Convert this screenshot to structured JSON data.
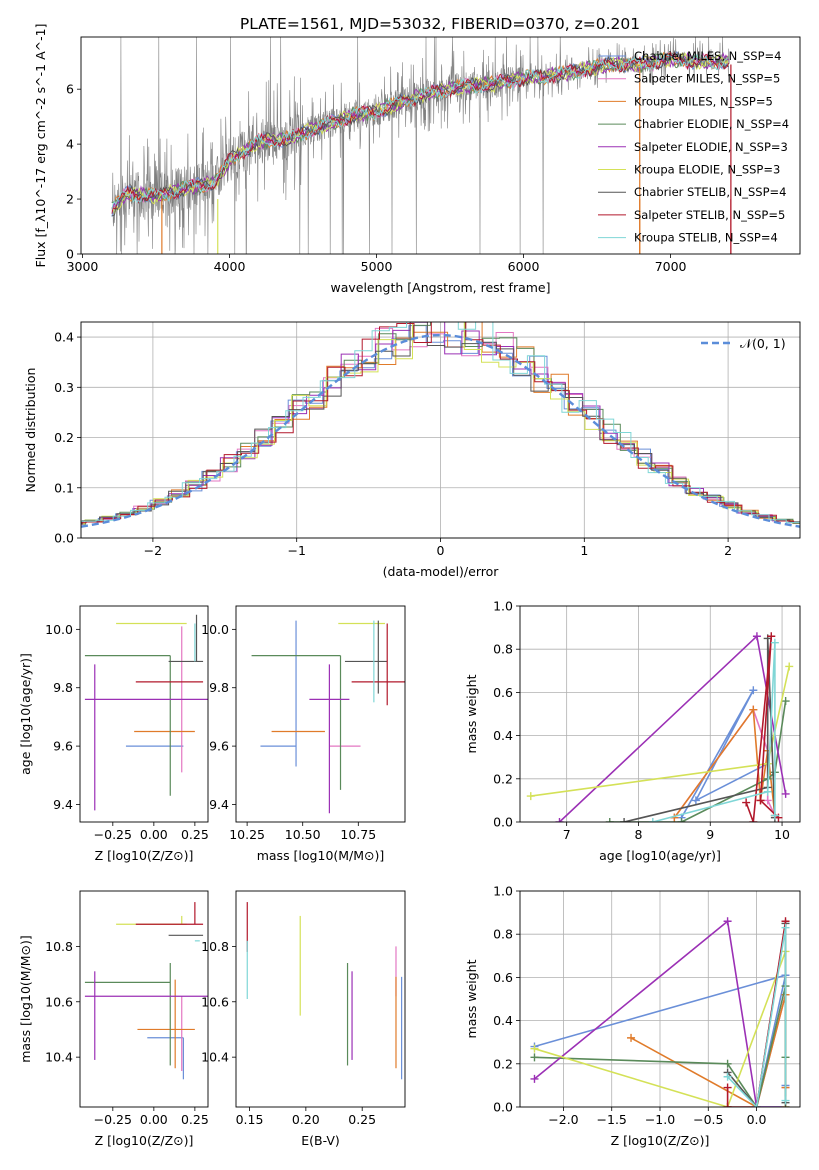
{
  "figure": {
    "title": "PLATE=1561, MJD=53032, FIBERID=0370, z=0.201"
  },
  "chart_data": [
    {
      "id": "spectrum",
      "type": "line",
      "xlabel": "wavelength [Angstrom, rest frame]",
      "ylabel": "Flux [f_λ10^-17 erg cm^-2 s^-1 A^-1]",
      "xlim": [
        2990,
        7880
      ],
      "ylim": [
        0,
        7.9
      ],
      "xticks": [
        3000,
        4000,
        5000,
        6000,
        7000
      ],
      "yticks": [
        0,
        2,
        4,
        6
      ],
      "legend_position": "top-right",
      "legend": [
        {
          "label": "Chabrier MILES, N_SSP=4",
          "color": "#6a8fd8"
        },
        {
          "label": "Salpeter MILES, N_SSP=5",
          "color": "#e377c2"
        },
        {
          "label": "Kroupa MILES, N_SSP=5",
          "color": "#e07b2a"
        },
        {
          "label": "Chabrier ELODIE, N_SSP=4",
          "color": "#5a8a5a"
        },
        {
          "label": "Salpeter ELODIE, N_SSP=3",
          "color": "#9b30b5"
        },
        {
          "label": "Kroupa ELODIE, N_SSP=3",
          "color": "#d4e157"
        },
        {
          "label": "Chabrier STELIB, N_SSP=4",
          "color": "#555555"
        },
        {
          "label": "Salpeter STELIB, N_SSP=5",
          "color": "#b2182b"
        },
        {
          "label": "Kroupa STELIB, N_SSP=4",
          "color": "#7fd6d6"
        }
      ],
      "continuum": {
        "x": [
          3200,
          3300,
          3500,
          3700,
          3900,
          4000,
          4200,
          4400,
          4600,
          4800,
          5000,
          5200,
          5400,
          5600,
          5800,
          6000,
          6200,
          6400,
          6600,
          6800,
          7000,
          7200,
          7400
        ],
        "y": [
          1.6,
          2.2,
          2.1,
          2.4,
          2.6,
          3.4,
          4.1,
          4.2,
          4.6,
          5.0,
          5.2,
          5.6,
          5.9,
          6.1,
          6.2,
          6.4,
          6.5,
          6.7,
          6.9,
          6.9,
          7.1,
          7.0,
          7.0
        ]
      }
    },
    {
      "id": "residuals",
      "type": "histogram",
      "xlabel": "(data-model)/error",
      "ylabel": "Normed distribution",
      "xlim": [
        -2.5,
        2.5
      ],
      "ylim": [
        0,
        0.43
      ],
      "xticks": [
        -2,
        -1,
        0,
        1,
        2
      ],
      "yticks": [
        0.0,
        0.1,
        0.2,
        0.3,
        0.4
      ],
      "grid": true,
      "legend": [
        {
          "label": "𝒩(0, 1)",
          "color": "#5b8dd9",
          "style": "dashed"
        }
      ],
      "legend_position": "top-right",
      "bin_width": 0.12
    },
    {
      "id": "age_vs_Z",
      "type": "errorbar",
      "xlabel": "Z [log10(Z/Z⊙)]",
      "ylabel": "age [log10(age/yr)]",
      "xlim": [
        -0.45,
        0.33
      ],
      "ylim": [
        9.34,
        10.08
      ],
      "xticks": [
        -0.25,
        0.0,
        0.25
      ],
      "yticks": [
        9.4,
        9.6,
        9.8,
        10.0
      ],
      "points": [
        {
          "x": 0.18,
          "y": 9.6,
          "xerr": [
            0.35,
            0.0
          ],
          "yerr": [
            0.0,
            0.0
          ],
          "color": "#6a8fd8"
        },
        {
          "x": 0.17,
          "y": 9.6,
          "xerr": [
            0.0,
            0.0
          ],
          "yerr": [
            0.09,
            0.41
          ],
          "color": "#e377c2"
        },
        {
          "x": 0.13,
          "y": 9.65,
          "xerr": [
            0.25,
            0.12
          ],
          "yerr": [
            0.0,
            0.0
          ],
          "color": "#e07b2a"
        },
        {
          "x": 0.1,
          "y": 9.91,
          "xerr": [
            0.52,
            0.0
          ],
          "yerr": [
            0.48,
            0.0
          ],
          "color": "#5a8a5a"
        },
        {
          "x": -0.36,
          "y": 9.76,
          "xerr": [
            0.06,
            0.7
          ],
          "yerr": [
            0.38,
            0.12
          ],
          "color": "#9b30b5"
        },
        {
          "x": 0.17,
          "y": 10.02,
          "xerr": [
            0.4,
            0.03
          ],
          "yerr": [
            0.0,
            0.0
          ],
          "color": "#d4e157"
        },
        {
          "x": 0.26,
          "y": 9.89,
          "xerr": [
            0.17,
            0.04
          ],
          "yerr": [
            0.0,
            0.16
          ],
          "color": "#555555"
        },
        {
          "x": 0.25,
          "y": 9.82,
          "xerr": [
            0.36,
            0.05
          ],
          "yerr": [
            0.0,
            0.0
          ],
          "color": "#b2182b"
        },
        {
          "x": 0.25,
          "y": 9.89,
          "xerr": [
            0.0,
            0.0
          ],
          "yerr": [
            0.0,
            0.13
          ],
          "color": "#7fd6d6"
        }
      ]
    },
    {
      "id": "age_vs_mass",
      "type": "errorbar",
      "xlabel": "mass [log10(M/M⊙)]",
      "ylabel": "",
      "xlim": [
        10.2,
        10.96
      ],
      "ylim": [
        9.34,
        10.08
      ],
      "xticks": [
        10.25,
        10.5,
        10.75
      ],
      "yticks": [
        9.4,
        9.6,
        9.8,
        10.0
      ],
      "points": [
        {
          "x": 10.47,
          "y": 9.6,
          "xerr": [
            0.16,
            0.0
          ],
          "yerr": [
            0.07,
            0.43
          ],
          "color": "#6a8fd8"
        },
        {
          "x": 10.62,
          "y": 9.6,
          "xerr": [
            0.0,
            0.14
          ],
          "yerr": [
            0.0,
            0.0
          ],
          "color": "#e377c2"
        },
        {
          "x": 10.5,
          "y": 9.65,
          "xerr": [
            0.14,
            0.1
          ],
          "yerr": [
            0.0,
            0.0
          ],
          "color": "#e07b2a"
        },
        {
          "x": 10.67,
          "y": 9.91,
          "xerr": [
            0.4,
            0.0
          ],
          "yerr": [
            0.46,
            0.0
          ],
          "color": "#5a8a5a"
        },
        {
          "x": 10.62,
          "y": 9.76,
          "xerr": [
            0.09,
            0.09
          ],
          "yerr": [
            0.39,
            0.12
          ],
          "color": "#9b30b5"
        },
        {
          "x": 10.87,
          "y": 10.02,
          "xerr": [
            0.21,
            0.0
          ],
          "yerr": [
            0.0,
            0.0
          ],
          "color": "#d4e157"
        },
        {
          "x": 10.84,
          "y": 9.89,
          "xerr": [
            0.15,
            0.04
          ],
          "yerr": [
            0.11,
            0.14
          ],
          "color": "#555555"
        },
        {
          "x": 10.88,
          "y": 9.82,
          "xerr": [
            0.16,
            0.08
          ],
          "yerr": [
            0.08,
            0.2
          ],
          "color": "#b2182b"
        },
        {
          "x": 10.82,
          "y": 9.89,
          "xerr": [
            0.0,
            0.0
          ],
          "yerr": [
            0.14,
            0.14
          ],
          "color": "#7fd6d6"
        }
      ]
    },
    {
      "id": "weight_vs_age",
      "type": "line",
      "xlabel": "age [log10(age/yr)]",
      "ylabel": "mass weight",
      "xlim": [
        6.35,
        10.25
      ],
      "ylim": [
        0.0,
        1.0
      ],
      "xticks": [
        7,
        8,
        9,
        10
      ],
      "yticks": [
        0.0,
        0.2,
        0.4,
        0.6,
        0.8,
        1.0
      ],
      "grid": true,
      "series": [
        {
          "color": "#6a8fd8",
          "x": [
            8.6,
            9.6,
            8.8,
            9.8
          ],
          "y": [
            0.02,
            0.61,
            0.1,
            0.27
          ]
        },
        {
          "color": "#e377c2",
          "x": [
            8.5,
            9.6,
            9.8,
            9.8,
            9.9
          ],
          "y": [
            0.02,
            0.52,
            0.33,
            0.1,
            0.03
          ]
        },
        {
          "color": "#e07b2a",
          "x": [
            8.5,
            9.6,
            9.7,
            9.8,
            9.9
          ],
          "y": [
            0.02,
            0.52,
            0.1,
            0.33,
            0.03
          ]
        },
        {
          "color": "#5a8a5a",
          "x": [
            7.6,
            8.6,
            9.8,
            9.9,
            10.05
          ],
          "y": [
            0.0,
            0.0,
            0.2,
            0.23,
            0.56
          ]
        },
        {
          "color": "#9b30b5",
          "x": [
            6.9,
            9.65,
            10.05
          ],
          "y": [
            0.0,
            0.86,
            0.13
          ]
        },
        {
          "color": "#d4e157",
          "x": [
            6.5,
            9.8,
            10.1
          ],
          "y": [
            0.12,
            0.27,
            0.72
          ]
        },
        {
          "color": "#555555",
          "x": [
            7.8,
            9.8,
            9.8,
            9.9
          ],
          "y": [
            0.0,
            0.16,
            0.85,
            0.02
          ]
        },
        {
          "color": "#b2182b",
          "x": [
            9.5,
            9.6,
            9.85,
            9.7,
            9.95
          ],
          "y": [
            0.09,
            0.0,
            0.86,
            0.1,
            0.02
          ]
        },
        {
          "color": "#7fd6d6",
          "x": [
            8.2,
            9.8,
            9.9,
            9.9
          ],
          "y": [
            0.0,
            0.14,
            0.83,
            0.03
          ]
        }
      ]
    },
    {
      "id": "mass_vs_Z",
      "type": "errorbar",
      "xlabel": "Z [log10(Z/Z⊙)]",
      "ylabel": "mass [log10(M/M⊙)]",
      "xlim": [
        -0.45,
        0.33
      ],
      "ylim": [
        10.22,
        11.0
      ],
      "xticks": [
        -0.25,
        0.0,
        0.25
      ],
      "yticks": [
        10.4,
        10.6,
        10.8
      ],
      "points": [
        {
          "x": 0.18,
          "y": 10.47,
          "xerr": [
            0.22,
            0.0
          ],
          "yerr": [
            0.15,
            0.0
          ],
          "color": "#6a8fd8"
        },
        {
          "x": 0.17,
          "y": 10.62,
          "xerr": [
            0.0,
            0.0
          ],
          "yerr": [
            0.27,
            0.0
          ],
          "color": "#e377c2"
        },
        {
          "x": 0.13,
          "y": 10.5,
          "xerr": [
            0.23,
            0.12
          ],
          "yerr": [
            0.14,
            0.18
          ],
          "color": "#e07b2a"
        },
        {
          "x": 0.1,
          "y": 10.67,
          "xerr": [
            0.52,
            0.0
          ],
          "yerr": [
            0.3,
            0.07
          ],
          "color": "#5a8a5a"
        },
        {
          "x": -0.36,
          "y": 10.62,
          "xerr": [
            0.06,
            0.7
          ],
          "yerr": [
            0.23,
            0.09
          ],
          "color": "#9b30b5"
        },
        {
          "x": 0.17,
          "y": 10.88,
          "xerr": [
            0.4,
            0.03
          ],
          "yerr": [
            0.0,
            0.03
          ],
          "color": "#d4e157"
        },
        {
          "x": 0.26,
          "y": 10.84,
          "xerr": [
            0.17,
            0.04
          ],
          "yerr": [
            0.0,
            0.0
          ],
          "color": "#555555"
        },
        {
          "x": 0.25,
          "y": 10.88,
          "xerr": [
            0.36,
            0.05
          ],
          "yerr": [
            0.0,
            0.08
          ],
          "color": "#b2182b"
        },
        {
          "x": 0.25,
          "y": 10.82,
          "xerr": [
            0.0,
            0.03
          ],
          "yerr": [
            0.0,
            0.0
          ],
          "color": "#7fd6d6"
        }
      ]
    },
    {
      "id": "mass_vs_ebv",
      "type": "errorbar",
      "xlabel": "E(B-V)",
      "ylabel": "",
      "xlim": [
        0.138,
        0.288
      ],
      "ylim": [
        10.22,
        11.0
      ],
      "xticks": [
        0.15,
        0.2,
        0.25
      ],
      "yticks": [
        10.4,
        10.6,
        10.8
      ],
      "points": [
        {
          "x": 0.285,
          "y": 10.47,
          "xerr": [
            0.0,
            0.0
          ],
          "yerr": [
            0.15,
            0.22
          ],
          "color": "#6a8fd8"
        },
        {
          "x": 0.28,
          "y": 10.62,
          "xerr": [
            0.0,
            0.0
          ],
          "yerr": [
            0.0,
            0.18
          ],
          "color": "#e377c2"
        },
        {
          "x": 0.28,
          "y": 10.5,
          "xerr": [
            0.0,
            0.0
          ],
          "yerr": [
            0.14,
            0.19
          ],
          "color": "#e07b2a"
        },
        {
          "x": 0.237,
          "y": 10.67,
          "xerr": [
            0.0,
            0.0
          ],
          "yerr": [
            0.3,
            0.07
          ],
          "color": "#5a8a5a"
        },
        {
          "x": 0.241,
          "y": 10.62,
          "xerr": [
            0.0,
            0.0
          ],
          "yerr": [
            0.23,
            0.09
          ],
          "color": "#9b30b5"
        },
        {
          "x": 0.195,
          "y": 10.88,
          "xerr": [
            0.0,
            0.0
          ],
          "yerr": [
            0.33,
            0.03
          ],
          "color": "#d4e157"
        },
        {
          "x": 0.148,
          "y": 10.84,
          "xerr": [
            0.0,
            0.0
          ],
          "yerr": [
            0.0,
            0.0
          ],
          "color": "#555555"
        },
        {
          "x": 0.148,
          "y": 10.88,
          "xerr": [
            0.0,
            0.0
          ],
          "yerr": [
            0.1,
            0.08
          ],
          "color": "#b2182b"
        },
        {
          "x": 0.148,
          "y": 10.82,
          "xerr": [
            0.0,
            0.0
          ],
          "yerr": [
            0.21,
            0.0
          ],
          "color": "#7fd6d6"
        }
      ]
    },
    {
      "id": "weight_vs_Z",
      "type": "line",
      "xlabel": "Z [log10(Z/Z⊙)]",
      "ylabel": "mass weight",
      "xlim": [
        -2.45,
        0.45
      ],
      "ylim": [
        0.0,
        1.0
      ],
      "xticks": [
        -2.0,
        -1.5,
        -1.0,
        -0.5,
        0.0
      ],
      "yticks": [
        0.0,
        0.2,
        0.4,
        0.6,
        0.8,
        1.0
      ],
      "grid": true,
      "series": [
        {
          "color": "#6a8fd8",
          "x": [
            -2.3,
            0.3,
            0.0,
            0.3,
            0.3
          ],
          "y": [
            0.28,
            0.61,
            0.0,
            0.0,
            0.1
          ]
        },
        {
          "color": "#e377c2",
          "x": [
            0.0,
            0.3,
            0.3
          ],
          "y": [
            0.0,
            0.52,
            0.09
          ]
        },
        {
          "color": "#e07b2a",
          "x": [
            -1.3,
            0.0,
            0.3,
            0.3
          ],
          "y": [
            0.32,
            0.0,
            0.52,
            0.09
          ]
        },
        {
          "color": "#5a8a5a",
          "x": [
            -2.3,
            -0.3,
            0.0,
            0.3,
            0.3
          ],
          "y": [
            0.23,
            0.2,
            0.0,
            0.56,
            0.23
          ]
        },
        {
          "color": "#9b30b5",
          "x": [
            -2.3,
            -0.3,
            0.0,
            0.3
          ],
          "y": [
            0.13,
            0.86,
            0.0,
            0.0
          ]
        },
        {
          "color": "#d4e157",
          "x": [
            -2.3,
            -0.3,
            0.3,
            0.3
          ],
          "y": [
            0.27,
            0.0,
            0.72,
            0.0
          ]
        },
        {
          "color": "#555555",
          "x": [
            -0.3,
            0.0,
            0.3,
            0.3
          ],
          "y": [
            0.16,
            0.0,
            0.85,
            0.02
          ]
        },
        {
          "color": "#b2182b",
          "x": [
            -0.3,
            -0.3,
            0.0,
            0.3
          ],
          "y": [
            0.09,
            0.0,
            0.0,
            0.86
          ]
        },
        {
          "color": "#7fd6d6",
          "x": [
            -0.3,
            0.0,
            0.3,
            0.3
          ],
          "y": [
            0.14,
            0.0,
            0.83,
            0.03
          ]
        }
      ]
    }
  ]
}
